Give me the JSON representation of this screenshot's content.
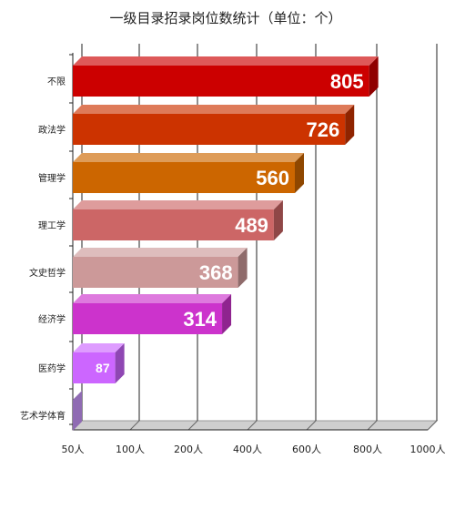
{
  "chart_data": {
    "type": "bar",
    "orientation": "horizontal",
    "title": "一级目录招录岗位数统计（单位：个）",
    "categories": [
      "不限",
      "政法学",
      "管理学",
      "理工学",
      "文史哲学",
      "经济学",
      "医药学",
      "艺术学体育"
    ],
    "values": [
      805,
      726,
      560,
      489,
      368,
      314,
      87,
      48
    ],
    "colors": [
      "#cc0000",
      "#cc3300",
      "#cc6600",
      "#cc6666",
      "#cc9999",
      "#cc33cc",
      "#cc66ff",
      "#cc99ff"
    ],
    "x_ticks": [
      50,
      100,
      200,
      400,
      600,
      800,
      1000
    ],
    "x_tick_labels": [
      "50人",
      "100人",
      "200人",
      "400人",
      "600人",
      "800人",
      "1000人"
    ],
    "xlim": [
      50,
      1000
    ],
    "xlabel": "",
    "ylabel": "",
    "grid": true,
    "legend": "none",
    "data_labels": true,
    "style": "3d"
  }
}
